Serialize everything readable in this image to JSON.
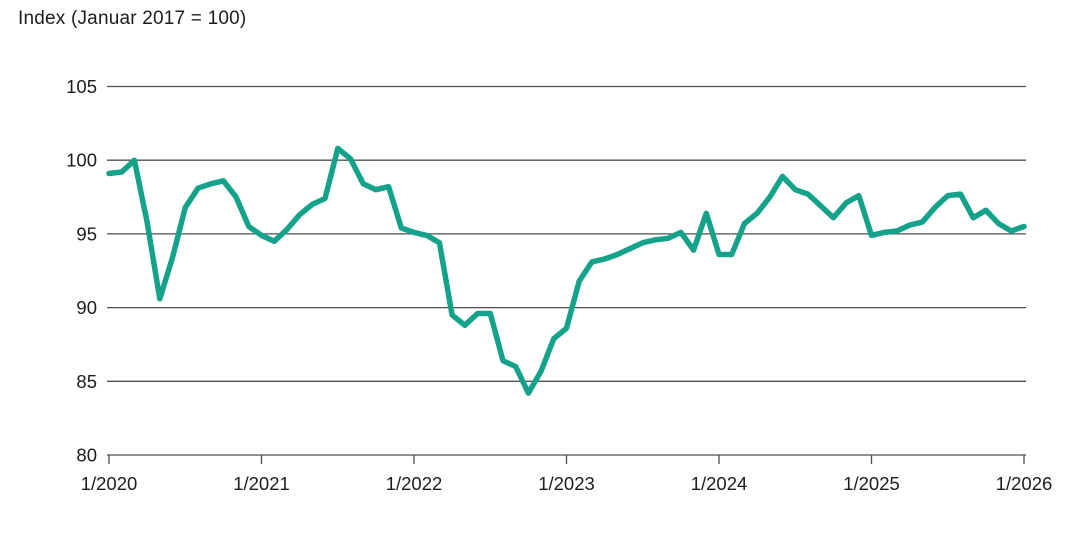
{
  "title": "Index (Januar 2017 = 100)",
  "colors": {
    "line": "#14a38a",
    "grid": "#4f4f4f",
    "axis": "#4f4f4f",
    "text": "#1d1d1b",
    "background": "#ffffff"
  },
  "chart_data": {
    "type": "line",
    "title": "Index (Januar 2017 = 100)",
    "xlabel": "",
    "ylabel": "Index (Januar 2017 = 100)",
    "ylim": [
      80,
      105
    ],
    "y_ticks": [
      80,
      85,
      90,
      95,
      100,
      105
    ],
    "x_tick_labels": [
      "1/2020",
      "1/2021",
      "1/2022",
      "1/2023",
      "1/2024",
      "1/2025",
      "1/2026"
    ],
    "grid": "horizontal",
    "legend_position": "none",
    "series": [
      {
        "name": "Index",
        "color": "#14a38a",
        "start_month": "1/2020",
        "end_month": "1/2026",
        "interval": "monthly",
        "months": [
          "1/2020",
          "2/2020",
          "3/2020",
          "4/2020",
          "5/2020",
          "6/2020",
          "7/2020",
          "8/2020",
          "9/2020",
          "10/2020",
          "11/2020",
          "12/2020",
          "1/2021",
          "2/2021",
          "3/2021",
          "4/2021",
          "5/2021",
          "6/2021",
          "7/2021",
          "8/2021",
          "9/2021",
          "10/2021",
          "11/2021",
          "12/2021",
          "1/2022",
          "2/2022",
          "3/2022",
          "4/2022",
          "5/2022",
          "6/2022",
          "7/2022",
          "8/2022",
          "9/2022",
          "10/2022",
          "11/2022",
          "12/2022",
          "1/2023",
          "2/2023",
          "3/2023",
          "4/2023",
          "5/2023",
          "6/2023",
          "7/2023",
          "8/2023",
          "9/2023",
          "10/2023",
          "11/2023",
          "12/2023",
          "1/2024",
          "2/2024",
          "3/2024",
          "4/2024",
          "5/2024",
          "6/2024",
          "7/2024",
          "8/2024",
          "9/2024",
          "10/2024",
          "11/2024",
          "12/2024",
          "1/2025",
          "2/2025",
          "3/2025",
          "4/2025",
          "5/2025",
          "6/2025",
          "7/2025",
          "8/2025",
          "9/2025",
          "10/2025",
          "11/2025",
          "12/2025",
          "1/2026"
        ],
        "values": [
          99.1,
          99.2,
          100.0,
          95.8,
          90.6,
          93.4,
          96.8,
          98.1,
          98.4,
          98.6,
          97.5,
          95.5,
          94.9,
          94.5,
          95.3,
          96.3,
          97.0,
          97.4,
          100.8,
          100.1,
          98.4,
          98.0,
          98.2,
          95.4,
          95.1,
          94.9,
          94.4,
          89.5,
          88.8,
          89.6,
          89.6,
          86.4,
          86.0,
          84.2,
          85.7,
          87.9,
          88.6,
          91.8,
          93.1,
          93.3,
          93.6,
          94.0,
          94.4,
          94.6,
          94.7,
          95.1,
          93.9,
          96.4,
          93.6,
          93.6,
          95.7,
          96.4,
          97.5,
          98.9,
          98.0,
          97.7,
          96.9,
          96.1,
          97.1,
          97.6,
          94.9,
          95.1,
          95.2,
          95.6,
          95.8,
          96.8,
          97.6,
          97.7,
          96.1,
          96.6,
          95.7,
          95.2,
          95.5
        ]
      }
    ]
  }
}
